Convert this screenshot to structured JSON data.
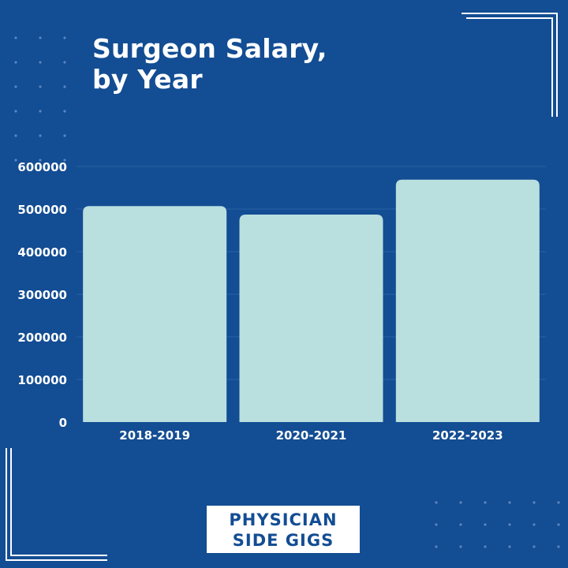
{
  "colors": {
    "background": "#134d93",
    "bar": "#b9dfdf",
    "text": "#ffffff",
    "grid": "#2a62a6"
  },
  "title_lines": [
    "Surgeon Salary,",
    "by Year"
  ],
  "logo_lines": [
    "PHYSICIAN",
    "SIDE GIGS"
  ],
  "chart_data": {
    "type": "bar",
    "title": "Surgeon Salary, by Year",
    "xlabel": "",
    "ylabel": "",
    "categories": [
      "2018-2019",
      "2020-2021",
      "2022-2023"
    ],
    "values": [
      507000,
      487000,
      569000
    ],
    "ylim": [
      0,
      600000
    ],
    "yticks": [
      0,
      100000,
      200000,
      300000,
      400000,
      500000,
      600000
    ],
    "grid": true,
    "legend": "none"
  }
}
